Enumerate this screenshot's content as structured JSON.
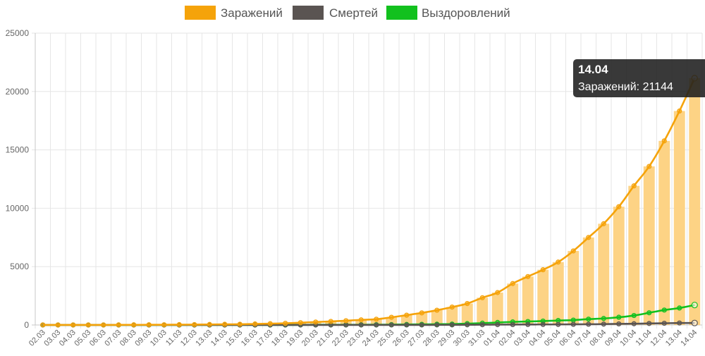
{
  "chart_data": {
    "type": "bar",
    "categories": [
      "02.03",
      "03.03",
      "04.03",
      "05.03",
      "06.03",
      "07.03",
      "08.03",
      "09.03",
      "10.03",
      "11.03",
      "12.03",
      "13.03",
      "14.03",
      "15.03",
      "16.03",
      "17.03",
      "18.03",
      "19.03",
      "20.03",
      "21.03",
      "22.03",
      "23.03",
      "24.03",
      "25.03",
      "26.03",
      "27.03",
      "28.03",
      "29.03",
      "30.03",
      "31.03",
      "01.04",
      "02.04",
      "03.04",
      "04.04",
      "05.04",
      "06.04",
      "07.04",
      "08.04",
      "09.04",
      "10.04",
      "11.04",
      "12.04",
      "13.04",
      "14.04"
    ],
    "series": [
      {
        "name": "Заражений",
        "type": "bar+line",
        "color": "#f5a30a",
        "bar_color": "#fdd385",
        "values": [
          3,
          3,
          3,
          4,
          4,
          10,
          14,
          17,
          20,
          28,
          34,
          45,
          59,
          63,
          90,
          114,
          147,
          199,
          253,
          306,
          367,
          438,
          495,
          658,
          840,
          1036,
          1264,
          1534,
          1836,
          2337,
          2777,
          3548,
          4149,
          4731,
          5389,
          6343,
          7497,
          8672,
          10131,
          11917,
          13584,
          15770,
          18328,
          21144
        ]
      },
      {
        "name": "Смертей",
        "type": "line",
        "color": "#5a5452",
        "values": [
          0,
          0,
          0,
          0,
          0,
          0,
          0,
          0,
          0,
          0,
          0,
          0,
          0,
          0,
          0,
          0,
          0,
          1,
          1,
          1,
          1,
          1,
          1,
          3,
          3,
          4,
          8,
          9,
          17,
          24,
          30,
          34,
          43,
          45,
          47,
          58,
          63,
          76,
          94,
          106,
          130,
          148,
          170,
          170
        ]
      },
      {
        "name": "Выздоровлений",
        "type": "line",
        "color": "#12c11e",
        "values": [
          0,
          0,
          0,
          0,
          0,
          0,
          0,
          0,
          0,
          0,
          0,
          0,
          0,
          0,
          0,
          0,
          0,
          9,
          16,
          17,
          19,
          22,
          26,
          32,
          46,
          54,
          68,
          80,
          121,
          157,
          217,
          262,
          298,
          335,
          383,
          420,
          500,
          558,
          663,
          810,
          1045,
          1278,
          1455,
          1709
        ]
      }
    ],
    "ylim": [
      0,
      25000
    ],
    "yticks": [
      "0",
      "5000",
      "10000",
      "15000",
      "20000",
      "25000"
    ],
    "grid": true,
    "legend_position": "top-center",
    "tooltip": {
      "category_index": 43,
      "title": "14.04",
      "text": "Заражений: 21144"
    }
  }
}
